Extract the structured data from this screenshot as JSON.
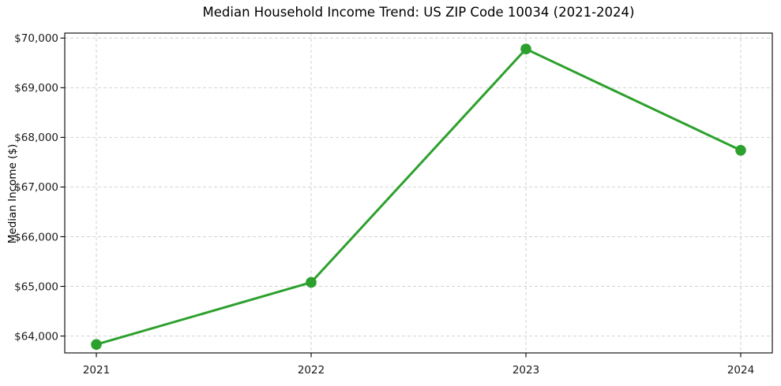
{
  "figure": {
    "background": "#ffffff"
  },
  "chart_data": {
    "type": "line",
    "title": "Median Household Income Trend: US ZIP Code 10034 (2021-2024)",
    "xlabel": "",
    "ylabel": "Median Income ($)",
    "categories": [
      "2021",
      "2022",
      "2023",
      "2024"
    ],
    "series": [
      {
        "values": [
          63830,
          65080,
          69780,
          67740
        ],
        "color": "#2ca02c",
        "marker": "circle"
      }
    ],
    "ylim": [
      63660,
      70100
    ],
    "yticks": [
      64000,
      65000,
      66000,
      67000,
      68000,
      69000,
      70000
    ],
    "ytick_prefix": "$",
    "grid": true,
    "grid_style": "dashed",
    "grid_color": "#d2d2d2",
    "axis_color": "#000000",
    "tick_label_color": "#1a1a1a",
    "legend_position": "none"
  }
}
